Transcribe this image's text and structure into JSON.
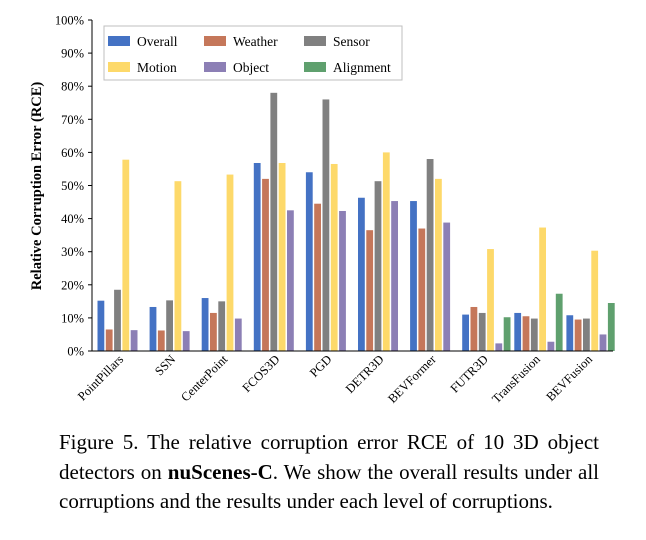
{
  "chart_data": {
    "type": "bar",
    "ylabel": "Relative Corruption Error (RCE)",
    "ylim": [
      0,
      100
    ],
    "yticks": [
      "0%",
      "10%",
      "20%",
      "30%",
      "40%",
      "50%",
      "60%",
      "70%",
      "80%",
      "90%",
      "100%"
    ],
    "grid": false,
    "legend_position": "top-left",
    "categories": [
      "PointPillars",
      "SSN",
      "CenterPoint",
      "FCOS3D",
      "PGD",
      "DETR3D",
      "BEVFormer",
      "FUTR3D",
      "TransFusion",
      "BEVFusion"
    ],
    "series": [
      {
        "name": "Overall",
        "color": "#4472c4",
        "values": [
          15.2,
          13.3,
          16.0,
          56.8,
          54.0,
          46.3,
          45.3,
          11.0,
          11.5,
          10.8
        ]
      },
      {
        "name": "Weather",
        "color": "#c5775a",
        "values": [
          6.5,
          6.2,
          11.5,
          52.0,
          44.5,
          36.5,
          37.0,
          13.3,
          10.5,
          9.5
        ]
      },
      {
        "name": "Sensor",
        "color": "#808080",
        "values": [
          18.5,
          15.3,
          15.0,
          78.0,
          76.0,
          51.3,
          58.0,
          11.5,
          9.8,
          9.8
        ]
      },
      {
        "name": "Motion",
        "color": "#fdd96a",
        "values": [
          57.8,
          51.3,
          53.3,
          56.8,
          56.5,
          60.0,
          52.0,
          30.8,
          37.3,
          30.3
        ]
      },
      {
        "name": "Object",
        "color": "#8c7fb5",
        "values": [
          6.3,
          6.0,
          9.8,
          42.5,
          42.3,
          45.3,
          38.8,
          2.3,
          2.8,
          5.0
        ]
      },
      {
        "name": "Alignment",
        "color": "#5fa06e",
        "values": [
          null,
          null,
          null,
          null,
          null,
          null,
          null,
          10.2,
          17.3,
          14.5
        ]
      }
    ]
  },
  "caption": {
    "lead": "Figure 5. The relative corruption error RCE of 10 3D object detectors on ",
    "bold": "nuScenes-C",
    "tail": ". We show the overall results under all corruptions and the results under each level of corruptions."
  }
}
